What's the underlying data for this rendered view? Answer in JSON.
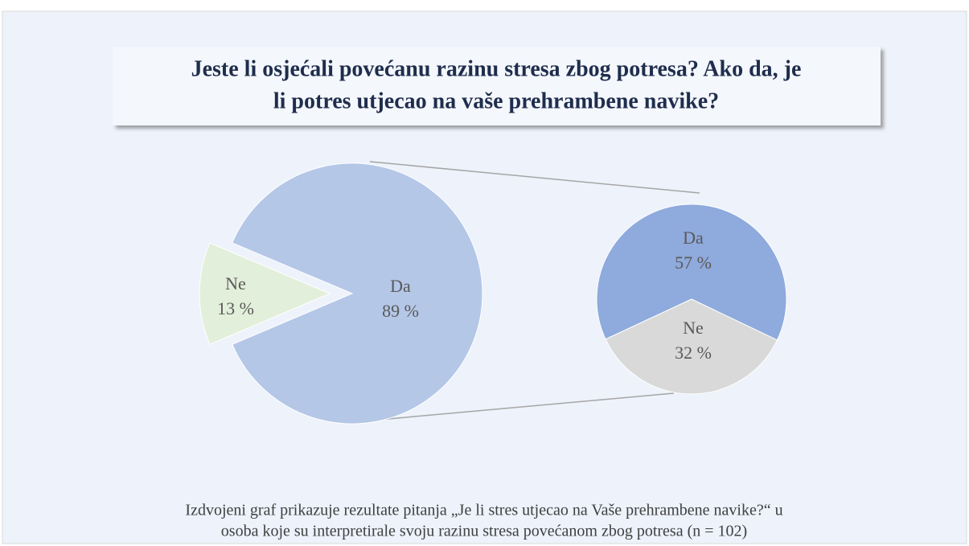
{
  "chart_data": [
    {
      "type": "pie",
      "title": [
        "Jeste li osjećali povećanu razinu stresa zbog potresa? Ako da, je",
        "li potres utjecao na vaše prehrambene navike?"
      ],
      "categories": [
        "Ne",
        "Da"
      ],
      "values": [
        13,
        89
      ],
      "value_labels": [
        "13 %",
        "89 %"
      ],
      "colors": [
        "#e2efda",
        "#b4c7e7"
      ],
      "caption": [
        "Izdvojeni graf prikazuje rezultate pitanja „Je li stres utjecao na Vaše prehrambene navike?“ u",
        "osoba koje su interpretirale svoju razinu stresa povećanom zbog potresa (n = 102)"
      ]
    },
    {
      "type": "pie",
      "categories": [
        "Da",
        "Ne"
      ],
      "values": [
        57,
        32
      ],
      "value_labels": [
        "57 %",
        "32 %"
      ],
      "colors": [
        "#8faadc",
        "#d9d9d9"
      ]
    }
  ]
}
